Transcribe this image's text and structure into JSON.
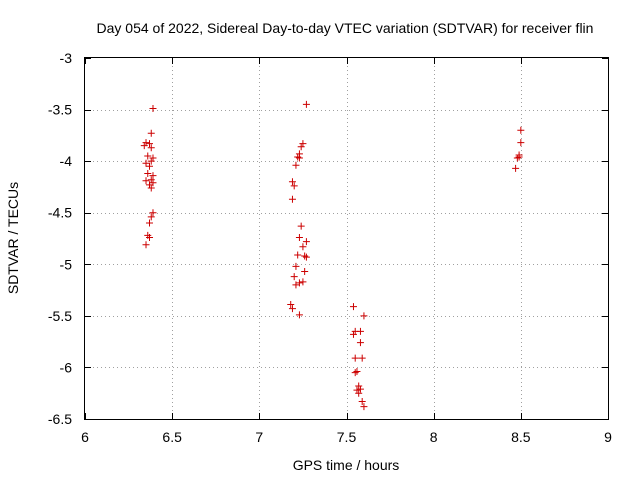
{
  "chart_data": {
    "type": "scatter",
    "title": "Day 054 of 2022, Sidereal Day-to-day VTEC variation (SDTVAR) for receiver flin",
    "xlabel": "GPS time / hours",
    "ylabel": "SDTVAR / TECUs",
    "xlim": [
      6,
      9
    ],
    "ylim": [
      -6.5,
      -3
    ],
    "x_ticks": [
      6,
      6.5,
      7,
      7.5,
      8,
      8.5,
      9
    ],
    "x_tick_labels": [
      "6",
      "6.5",
      "7",
      "7.5",
      "8",
      "8.5",
      "9"
    ],
    "y_ticks": [
      -3,
      -3.5,
      -4,
      -4.5,
      -5,
      -5.5,
      -6,
      -6.5
    ],
    "y_tick_labels": [
      "-3",
      "-3.5",
      "-4",
      "-4.5",
      "-5",
      "-5.5",
      "-6",
      "-6.5"
    ],
    "grid": true,
    "marker": "+",
    "marker_color": "#cc0000",
    "series": [
      {
        "name": "SDTVAR",
        "points": [
          [
            6.39,
            -3.49
          ],
          [
            6.38,
            -3.73
          ],
          [
            6.35,
            -3.82
          ],
          [
            6.37,
            -3.83
          ],
          [
            6.34,
            -3.85
          ],
          [
            6.38,
            -3.87
          ],
          [
            6.36,
            -3.95
          ],
          [
            6.39,
            -3.97
          ],
          [
            6.35,
            -4.02
          ],
          [
            6.38,
            -4.0
          ],
          [
            6.37,
            -4.05
          ],
          [
            6.36,
            -4.12
          ],
          [
            6.39,
            -4.14
          ],
          [
            6.35,
            -4.19
          ],
          [
            6.38,
            -4.18
          ],
          [
            6.39,
            -4.21
          ],
          [
            6.37,
            -4.23
          ],
          [
            6.38,
            -4.26
          ],
          [
            6.39,
            -4.5
          ],
          [
            6.38,
            -4.54
          ],
          [
            6.37,
            -4.6
          ],
          [
            6.36,
            -4.72
          ],
          [
            6.37,
            -4.74
          ],
          [
            6.35,
            -4.81
          ],
          [
            7.27,
            -3.45
          ],
          [
            7.25,
            -3.83
          ],
          [
            7.24,
            -3.86
          ],
          [
            7.23,
            -3.93
          ],
          [
            7.22,
            -3.96
          ],
          [
            7.23,
            -3.97
          ],
          [
            7.21,
            -4.04
          ],
          [
            7.19,
            -4.2
          ],
          [
            7.2,
            -4.24
          ],
          [
            7.19,
            -4.37
          ],
          [
            7.24,
            -4.63
          ],
          [
            7.23,
            -4.74
          ],
          [
            7.27,
            -4.78
          ],
          [
            7.25,
            -4.83
          ],
          [
            7.22,
            -4.91
          ],
          [
            7.26,
            -4.92
          ],
          [
            7.27,
            -4.93
          ],
          [
            7.21,
            -5.02
          ],
          [
            7.26,
            -5.07
          ],
          [
            7.2,
            -5.12
          ],
          [
            7.25,
            -5.17
          ],
          [
            7.23,
            -5.18
          ],
          [
            7.21,
            -5.2
          ],
          [
            7.18,
            -5.39
          ],
          [
            7.19,
            -5.43
          ],
          [
            7.23,
            -5.49
          ],
          [
            7.54,
            -5.41
          ],
          [
            7.6,
            -5.5
          ],
          [
            7.55,
            -5.65
          ],
          [
            7.58,
            -5.65
          ],
          [
            7.54,
            -5.68
          ],
          [
            7.58,
            -5.76
          ],
          [
            7.55,
            -5.91
          ],
          [
            7.59,
            -5.91
          ],
          [
            7.56,
            -6.04
          ],
          [
            7.55,
            -6.05
          ],
          [
            7.57,
            -6.18
          ],
          [
            7.56,
            -6.22
          ],
          [
            7.58,
            -6.21
          ],
          [
            7.57,
            -6.25
          ],
          [
            7.59,
            -6.33
          ],
          [
            7.6,
            -6.38
          ],
          [
            8.5,
            -3.7
          ],
          [
            8.5,
            -3.82
          ],
          [
            8.49,
            -3.94
          ],
          [
            8.48,
            -3.97
          ],
          [
            8.49,
            -3.96
          ],
          [
            8.47,
            -4.07
          ]
        ]
      }
    ]
  }
}
